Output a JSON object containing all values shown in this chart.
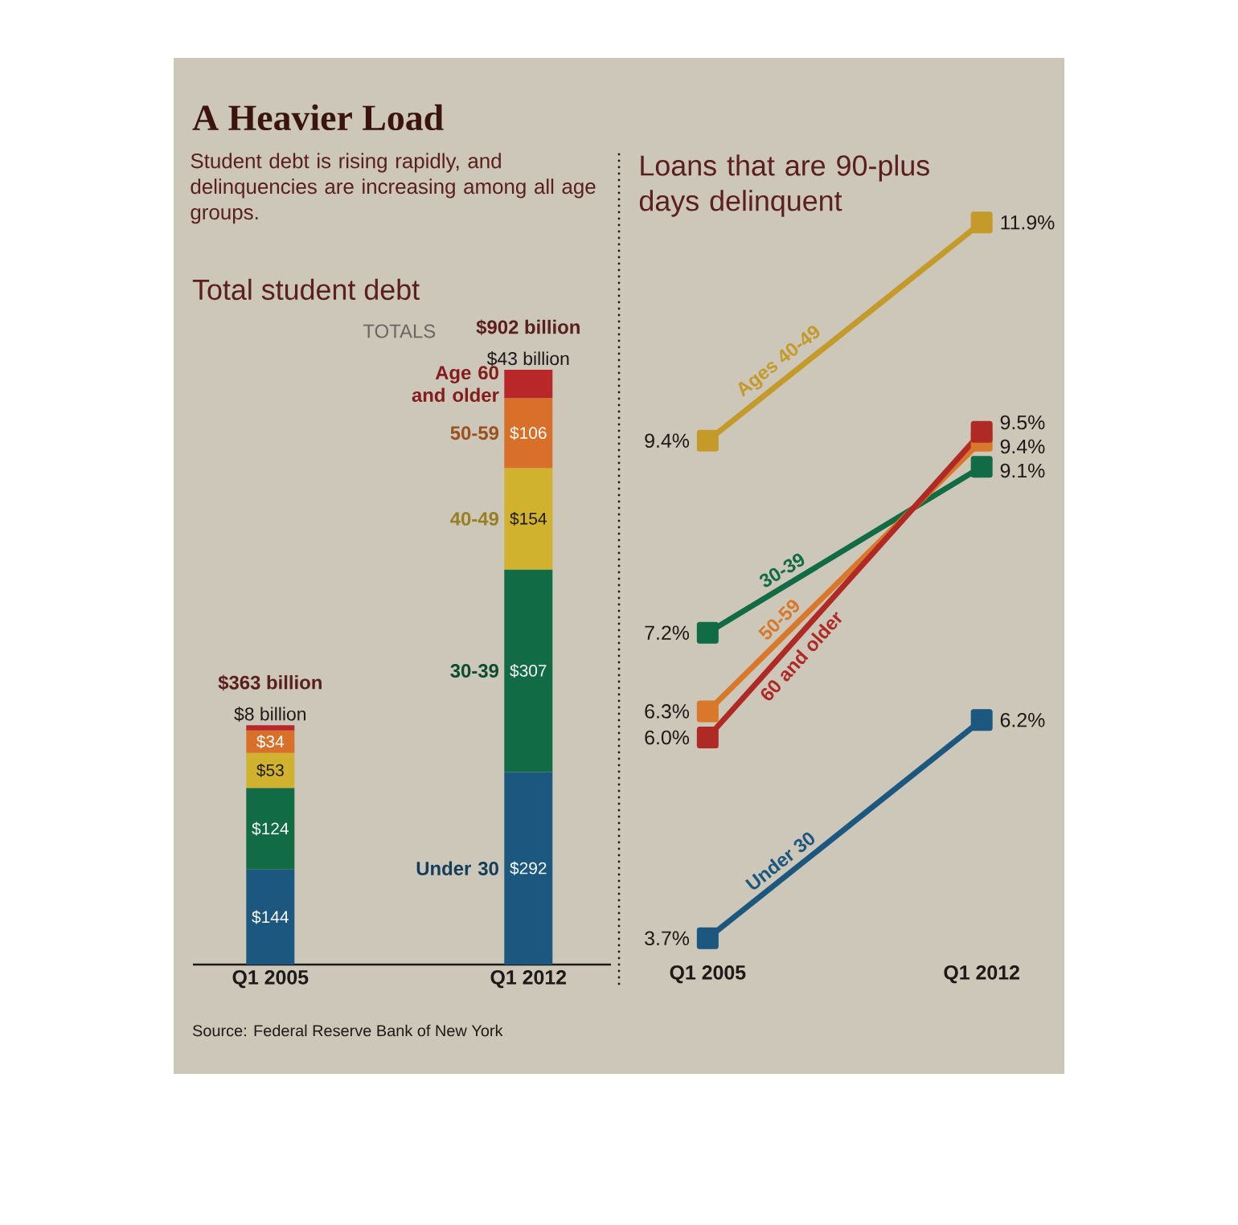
{
  "chart_data": [
    {
      "type": "bar",
      "stacked": true,
      "title": "A Heavier Load",
      "subtitle": "Student debt is rising rapidly, and delinquencies are increasing among all age groups.",
      "categories": [
        "Q1 2005",
        "Q1 2012"
      ],
      "series": [
        {
          "name": "Under 30",
          "color": "#1b577e",
          "values": [
            144,
            292
          ],
          "value_labels": [
            "$144",
            "$292"
          ]
        },
        {
          "name": "30-39",
          "color": "#116b45",
          "values": [
            124,
            307
          ],
          "value_labels": [
            "$124",
            "$307"
          ]
        },
        {
          "name": "40-49",
          "color": "#d1b22f",
          "values": [
            53,
            154
          ],
          "value_labels": [
            "$53",
            "$154"
          ]
        },
        {
          "name": "50-59",
          "color": "#d8702a",
          "values": [
            34,
            106
          ],
          "value_labels": [
            "$34",
            "$106"
          ]
        },
        {
          "name": "Age 60 and older",
          "color": "#b8282a",
          "values": [
            8,
            43
          ],
          "value_labels": [
            "$8 billion",
            "$43 billion"
          ]
        }
      ],
      "totals": [
        "$363 billion",
        "$902 billion"
      ],
      "annotations": [
        "Total student debt",
        "TOTALS",
        "Source: Federal Reserve Bank of New York"
      ]
    },
    {
      "type": "line",
      "title": "Loans that are 90-plus days delinquent",
      "marker": "square",
      "categories": [
        "Q1 2005",
        "Q1 2012"
      ],
      "series": [
        {
          "name": "Ages 40-49",
          "color": "#c49a2a",
          "values": [
            9.4,
            11.9
          ],
          "value_labels": [
            "9.4%",
            "11.9%"
          ]
        },
        {
          "name": "30-39",
          "color": "#116b45",
          "values": [
            7.2,
            9.1
          ],
          "value_labels": [
            "7.2%",
            "9.1%"
          ]
        },
        {
          "name": "50-59",
          "color": "#d9782a",
          "values": [
            6.3,
            9.4
          ],
          "value_labels": [
            "6.3%",
            "9.4%"
          ]
        },
        {
          "name": "60 and older",
          "color": "#b02a25",
          "values": [
            6.0,
            9.5
          ],
          "value_labels": [
            "6.0%",
            "9.5%"
          ]
        },
        {
          "name": "Under 30",
          "color": "#1b577e",
          "values": [
            3.7,
            6.2
          ],
          "value_labels": [
            "3.7%",
            "6.2%"
          ]
        }
      ]
    }
  ]
}
